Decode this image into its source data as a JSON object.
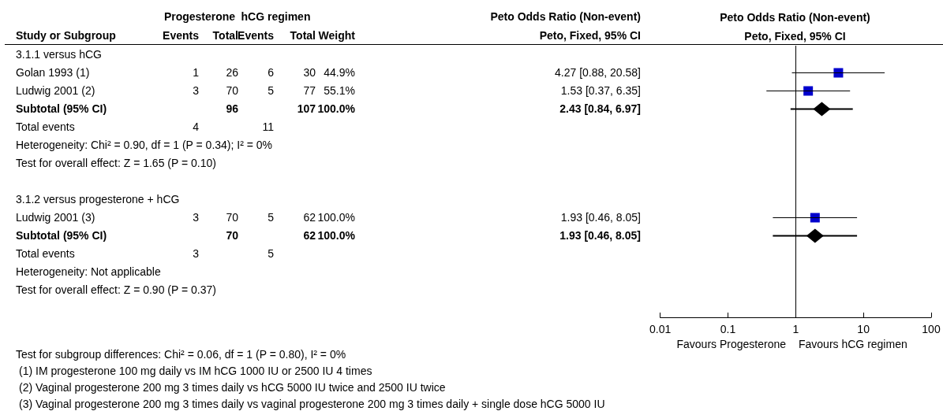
{
  "chart_data": [
    {
      "type": "other",
      "ylabel": "Study or Subgroup",
      "categories": [
        "Events",
        "Total",
        "Events",
        "Total",
        "Weight",
        "Peto, Fixed, 95% CI"
      ],
      "y_categories": [
        "3.1.1 versus hCG",
        "Golan 1993 (1)",
        "Ludwig 2001 (2)",
        "Subtotal (95% CI)",
        "Total events",
        "Heterogeneity: Chi² = 0.90, df = 1 (P = 0.34); I² = 0%",
        "Test for overall effect: Z = 1.65 (P = 0.10)",
        null,
        "3.1.2 versus progesterone + hCG",
        "Ludwig 2001 (3)",
        "Subtotal (95% CI)",
        "Total events",
        "Heterogeneity: Not applicable",
        "Test for overall effect: Z = 0.90 (P = 0.37)",
        null
      ],
      "cell_labels": [
        [
          null,
          null,
          null,
          null,
          null,
          null
        ],
        [
          "1",
          "26",
          "6",
          "30",
          "44.9%",
          "4.27 [0.88, 20.58]"
        ],
        [
          "3",
          "70",
          "5",
          "77",
          "55.1%",
          "1.53 [0.37, 6.35]"
        ],
        [
          null,
          "96",
          null,
          "107",
          "100.0%",
          "2.43 [0.84, 6.97]"
        ],
        [
          "4",
          null,
          "11",
          null,
          null,
          null
        ],
        [
          null,
          null,
          null,
          null,
          null,
          null
        ],
        [
          null,
          null,
          null,
          null,
          null,
          null
        ],
        [
          null,
          null,
          null,
          null,
          null,
          null
        ],
        [
          null,
          null,
          null,
          null,
          null,
          null
        ],
        [
          "3",
          "70",
          "5",
          "62",
          "100.0%",
          "1.93 [0.46, 8.05]"
        ],
        [
          null,
          "70",
          null,
          "62",
          "100.0%",
          "1.93 [0.46, 8.05]"
        ],
        [
          "3",
          null,
          "5",
          null,
          null,
          null
        ],
        [
          null,
          null,
          null,
          null,
          null,
          null
        ],
        [
          null,
          null,
          null,
          null,
          null,
          null
        ],
        [
          null,
          null,
          null,
          null,
          null,
          null
        ]
      ],
      "annotations": [
        "Progesterone",
        "hCG regimen",
        "Peto Odds Ratio (Non-event)",
        "Test for subgroup differences: Chi² = 0.06, df = 1 (P = 0.80), I² = 0%",
        "(1) IM progesterone 100 mg daily vs IM hCG 1000 IU or 2500 IU 4 times",
        "(2) Vaginal progesterone 200 mg 3 times daily vs hCG 5000 IU twice and 2500 IU twice",
        "(3) Vaginal progesterone 200 mg 3 times daily vs vaginal progesterone 200 mg 3 times daily + single dose hCG 5000 IU"
      ]
    },
    {
      "type": "scatter",
      "orientation": "horizontal",
      "title": "Peto Odds Ratio (Non-event)",
      "subtitle": "Peto, Fixed, 95% CI",
      "categories": [
        null,
        null,
        null,
        null,
        null,
        null,
        null,
        null,
        null,
        null,
        null,
        null,
        null,
        null,
        null
      ],
      "tick_labels": "x",
      "log": "x",
      "grid": false,
      "xlim": [
        0.01,
        100
      ],
      "xticks": [
        0.01,
        0.1,
        1,
        10,
        100
      ],
      "series": [
        {
          "color": "#0000cc",
          "marker": "square",
          "values": [
            null,
            4.27,
            1.53,
            null,
            null,
            null,
            null,
            null,
            null,
            1.93,
            null,
            null,
            null,
            null,
            null
          ],
          "errors": [
            null,
            [
              0.88,
              20.58
            ],
            [
              0.37,
              6.35
            ],
            null,
            null,
            null,
            null,
            null,
            null,
            [
              0.46,
              8.05
            ],
            null,
            null,
            null,
            null,
            null
          ]
        },
        {
          "color": "#000000",
          "marker": "diamond",
          "values": [
            null,
            null,
            null,
            2.43,
            null,
            null,
            null,
            null,
            null,
            null,
            1.93,
            null,
            null,
            null,
            null
          ],
          "errors": [
            null,
            null,
            null,
            [
              0.84,
              6.97
            ],
            null,
            null,
            null,
            null,
            null,
            null,
            [
              0.46,
              8.05
            ],
            null,
            null,
            null,
            null
          ]
        }
      ],
      "ref_lines": [
        {
          "axis": "x",
          "value": 1
        }
      ],
      "annotations": [
        "Favours Progesterone",
        "Favours hCG regimen"
      ]
    }
  ]
}
